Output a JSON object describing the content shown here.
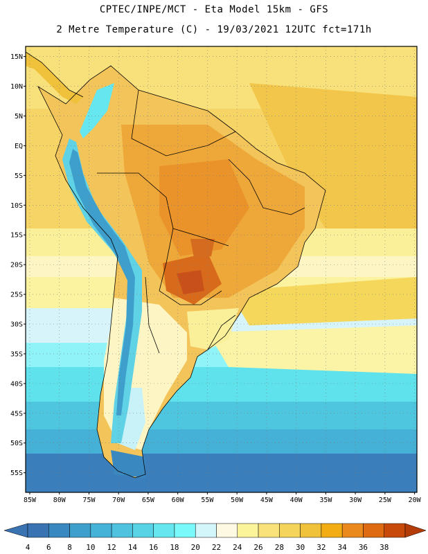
{
  "header": {
    "line1": "CPTEC/INPE/MCT -  Eta Model 15km - GFS",
    "line2": "2 Metre Temperature (C) - 19/03/2021 12UTC fct=171h"
  },
  "map": {
    "lat_ticks": [
      "15N",
      "10N",
      "5N",
      "EQ",
      "5S",
      "10S",
      "15S",
      "20S",
      "25S",
      "30S",
      "35S",
      "40S",
      "45S",
      "50S",
      "55S"
    ],
    "lon_ticks": [
      "85W",
      "80W",
      "75W",
      "70W",
      "65W",
      "60W",
      "55W",
      "50W",
      "45W",
      "40W",
      "35W",
      "30W",
      "25W",
      "20W"
    ],
    "lat_values": [
      15,
      10,
      5,
      0,
      -5,
      -10,
      -15,
      -20,
      -25,
      -30,
      -35,
      -40,
      -45,
      -50,
      -55
    ],
    "lon_values": [
      -85,
      -80,
      -75,
      -70,
      -65,
      -60,
      -55,
      -50,
      -45,
      -40,
      -35,
      -30,
      -25,
      -20
    ],
    "extent": {
      "lon_min": -85.7,
      "lon_max": -19.6,
      "lat_min": -58.3,
      "lat_max": 16.7
    }
  },
  "colorbar": {
    "labels": [
      "4",
      "6",
      "8",
      "10",
      "12",
      "14",
      "16",
      "18",
      "20",
      "22",
      "24",
      "26",
      "28",
      "30",
      "32",
      "34",
      "36",
      "38"
    ],
    "colors": [
      "#3a73b2",
      "#3a88c0",
      "#3f9fcc",
      "#45b2d8",
      "#4fc2df",
      "#58d3e6",
      "#66e6ef",
      "#7af9fb",
      "#d3f6fb",
      "#fdf9e3",
      "#fbf49a",
      "#f9e27a",
      "#f5d45b",
      "#f0c23b",
      "#f3ad14",
      "#ea8a1e",
      "#de6a12",
      "#c84a0a"
    ],
    "low_arrow_color": "#3a73b2",
    "high_arrow_color": "#b43c08"
  }
}
